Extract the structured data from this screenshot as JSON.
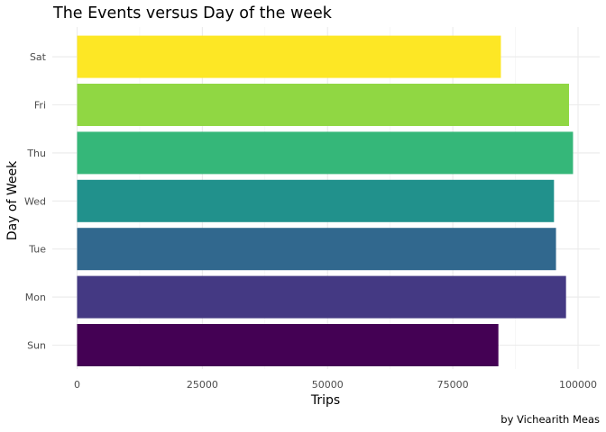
{
  "chart_data": {
    "type": "bar",
    "orientation": "horizontal",
    "title": "The Events versus Day of the week",
    "xlabel": "Trips",
    "ylabel": "Day of Week",
    "caption": "by Vichearith Meas",
    "categories": [
      "Sun",
      "Mon",
      "Tue",
      "Wed",
      "Thu",
      "Fri",
      "Sat"
    ],
    "values": [
      84100,
      97600,
      95600,
      95200,
      99000,
      98200,
      84600
    ],
    "colors": [
      "#440154",
      "#443983",
      "#31688e",
      "#21918c",
      "#35b779",
      "#90d743",
      "#fde725"
    ],
    "xlim": [
      0,
      103000
    ],
    "xticks": [
      0,
      25000,
      50000,
      75000,
      100000
    ],
    "xtick_labels": [
      "0",
      "25000",
      "50000",
      "75000",
      "100000"
    ],
    "grid": true,
    "legend": "none"
  }
}
